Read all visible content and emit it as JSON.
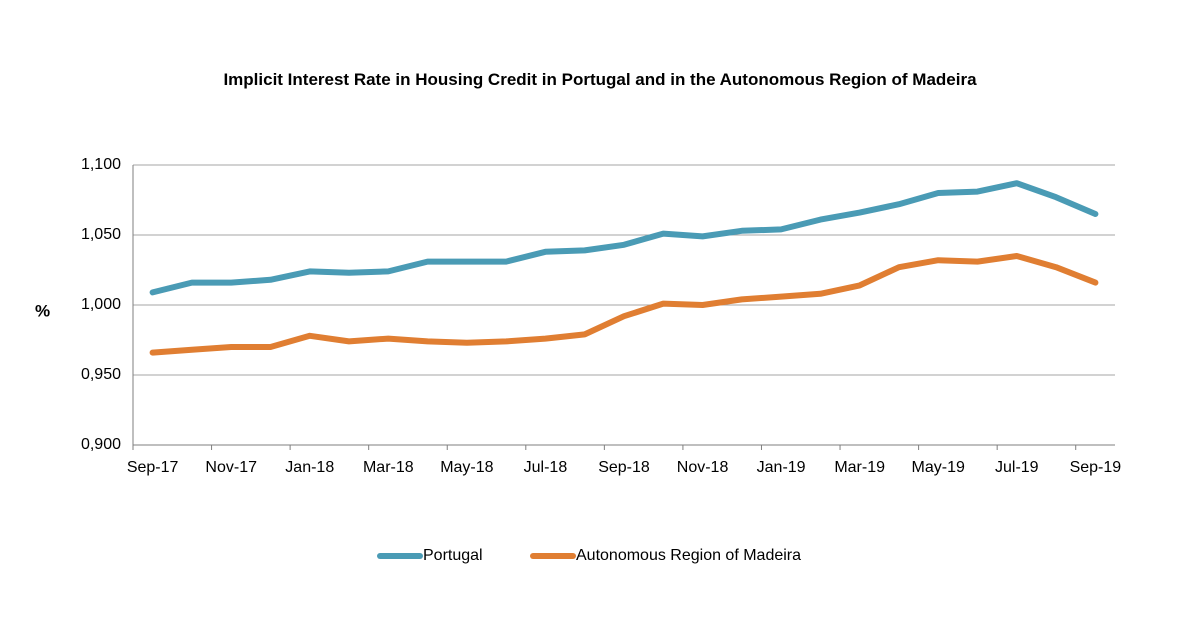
{
  "chart_data": {
    "type": "line",
    "title": "Implicit Interest Rate in Housing Credit in Portugal and in the Autonomous Region of Madeira",
    "xlabel": "",
    "ylabel": "%",
    "ylim": [
      0.9,
      1.1
    ],
    "yticks": [
      "0,900",
      "0,950",
      "1,000",
      "1,050",
      "1,100"
    ],
    "x_tick_labels": [
      "Sep-17",
      "Nov-17",
      "Jan-18",
      "Mar-18",
      "May-18",
      "Jul-18",
      "Sep-18",
      "Nov-18",
      "Jan-19",
      "Mar-19",
      "May-19",
      "Jul-19",
      "Sep-19"
    ],
    "x": [
      "Sep-17",
      "Oct-17",
      "Nov-17",
      "Dec-17",
      "Jan-18",
      "Feb-18",
      "Mar-18",
      "Apr-18",
      "May-18",
      "Jun-18",
      "Jul-18",
      "Aug-18",
      "Sep-18",
      "Oct-18",
      "Nov-18",
      "Dec-18",
      "Jan-19",
      "Feb-19",
      "Mar-19",
      "Apr-19",
      "May-19",
      "Jun-19",
      "Jul-19",
      "Aug-19",
      "Sep-19"
    ],
    "grid": true,
    "legend_position": "bottom",
    "series": [
      {
        "name": "Portugal",
        "color": "#4a9bb5",
        "values": [
          1.009,
          1.016,
          1.016,
          1.018,
          1.024,
          1.023,
          1.024,
          1.031,
          1.031,
          1.031,
          1.038,
          1.039,
          1.043,
          1.051,
          1.049,
          1.053,
          1.054,
          1.061,
          1.066,
          1.072,
          1.08,
          1.081,
          1.087,
          1.077,
          1.065
        ]
      },
      {
        "name": "Autonomous Region of Madeira",
        "color": "#e07e32",
        "values": [
          0.966,
          0.968,
          0.97,
          0.97,
          0.978,
          0.974,
          0.976,
          0.974,
          0.973,
          0.974,
          0.976,
          0.979,
          0.992,
          1.001,
          1.0,
          1.004,
          1.006,
          1.008,
          1.014,
          1.027,
          1.032,
          1.031,
          1.035,
          1.027,
          1.016
        ]
      }
    ]
  }
}
